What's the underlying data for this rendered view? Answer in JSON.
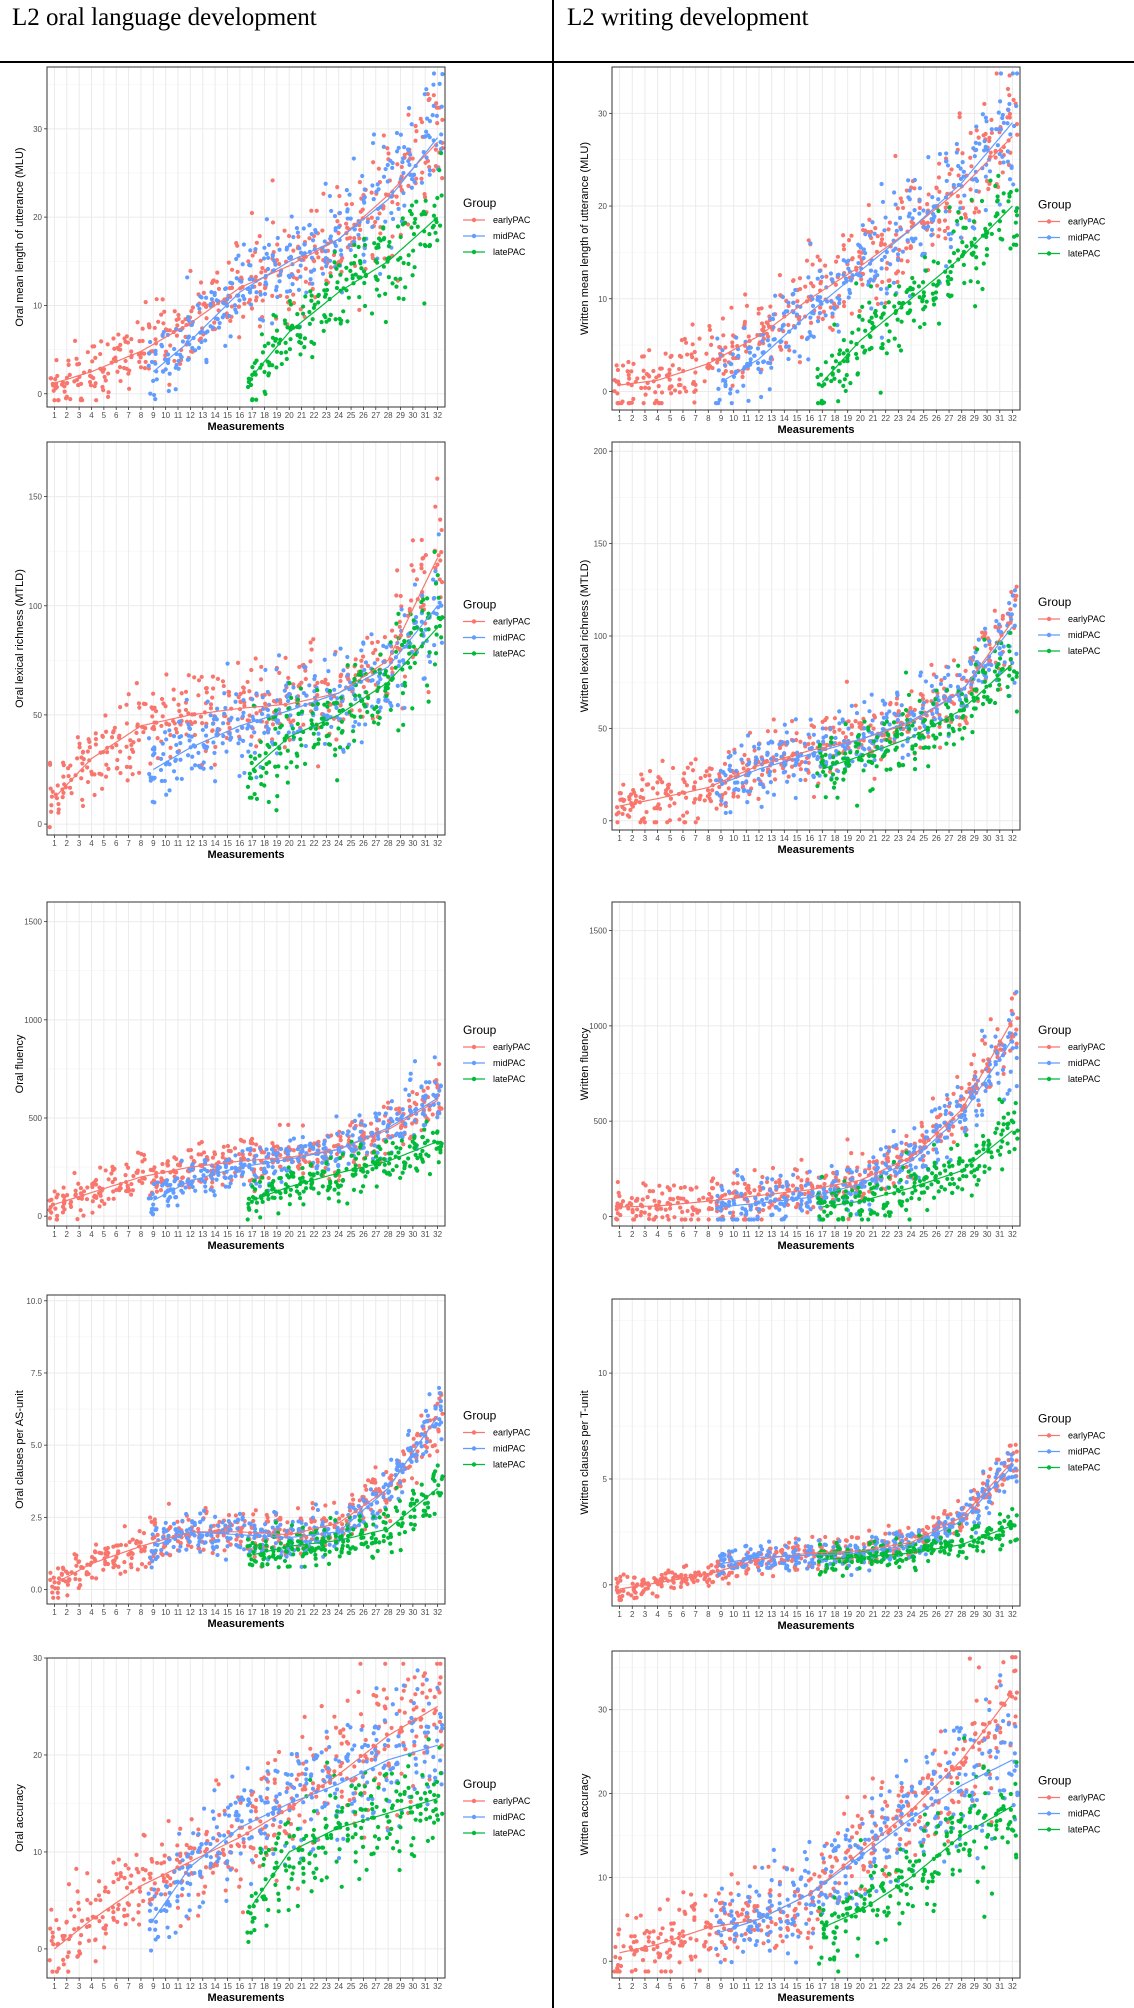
{
  "columns": {
    "left_title": "L2 oral language development",
    "right_title": "L2 writing development"
  },
  "chart_data": [
    {
      "type": "scatter",
      "ylabel": "Oral mean length of utterance (MLU)",
      "xlabel": "Measurements",
      "ylim": [
        -1.5,
        37
      ],
      "yticks": [
        0,
        10,
        20,
        30
      ],
      "ytick_labels": [
        "0",
        "10",
        "20",
        "30"
      ],
      "spread_sd": 3,
      "legend_title": "Group",
      "series": [
        {
          "name": "earlyPAC",
          "color": "#F8766D",
          "x": [
            1,
            4,
            8,
            12,
            16,
            20,
            24,
            28,
            32
          ],
          "trend": [
            1.2,
            2.5,
            4.8,
            8,
            12,
            14.5,
            17.5,
            22.5,
            28.5
          ]
        },
        {
          "name": "midPAC",
          "color": "#619CFF",
          "x": [
            9,
            12,
            16,
            20,
            24,
            28,
            32
          ],
          "trend": [
            2.5,
            6,
            11.5,
            15,
            17.5,
            22,
            29
          ]
        },
        {
          "name": "latePAC",
          "color": "#00BA38",
          "x": [
            17,
            20,
            24,
            28,
            32
          ],
          "trend": [
            2,
            7,
            11.5,
            15,
            20
          ]
        }
      ]
    },
    {
      "type": "scatter",
      "ylabel": "Oral lexical richness (MTLD)",
      "xlabel": "Measurements",
      "ylim": [
        -5,
        175
      ],
      "yticks": [
        0,
        50,
        100,
        150
      ],
      "ytick_labels": [
        "0",
        "50",
        "100",
        "150"
      ],
      "spread_sd": 12,
      "legend_title": "Group",
      "series": [
        {
          "name": "earlyPAC",
          "color": "#F8766D",
          "x": [
            1,
            4,
            8,
            12,
            16,
            20,
            24,
            28,
            32
          ],
          "trend": [
            12,
            30,
            45,
            50,
            53,
            55,
            60,
            75,
            122
          ]
        },
        {
          "name": "midPAC",
          "color": "#619CFF",
          "x": [
            9,
            12,
            16,
            20,
            24,
            28,
            32
          ],
          "trend": [
            25,
            35,
            45,
            52,
            60,
            72,
            100
          ]
        },
        {
          "name": "latePAC",
          "color": "#00BA38",
          "x": [
            17,
            20,
            24,
            28,
            32
          ],
          "trend": [
            25,
            40,
            50,
            65,
            90
          ]
        }
      ]
    },
    {
      "type": "scatter",
      "ylabel": "Oral fluency",
      "xlabel": "Measurements",
      "ylim": [
        -50,
        1600
      ],
      "yticks": [
        0,
        500,
        1000,
        1500
      ],
      "ytick_labels": [
        "0",
        "500",
        "1000",
        "1500"
      ],
      "spread_sd": 80,
      "legend_title": "Group",
      "series": [
        {
          "name": "earlyPAC",
          "color": "#F8766D",
          "x": [
            1,
            4,
            8,
            12,
            16,
            20,
            24,
            28,
            32
          ],
          "trend": [
            60,
            120,
            200,
            250,
            280,
            300,
            340,
            440,
            590
          ]
        },
        {
          "name": "midPAC",
          "color": "#619CFF",
          "x": [
            9,
            12,
            16,
            20,
            24,
            28,
            32
          ],
          "trend": [
            80,
            180,
            250,
            290,
            340,
            450,
            600
          ]
        },
        {
          "name": "latePAC",
          "color": "#00BA38",
          "x": [
            17,
            20,
            24,
            28,
            32
          ],
          "trend": [
            80,
            150,
            220,
            280,
            380
          ]
        }
      ]
    },
    {
      "type": "scatter",
      "ylabel": "Oral clauses per AS-unit",
      "xlabel": "Measurements",
      "ylim": [
        -0.5,
        10.2
      ],
      "yticks": [
        0,
        2.5,
        5,
        7.5,
        10
      ],
      "ytick_labels": [
        "0.0",
        "2.5",
        "5.0",
        "7.5",
        "10.0"
      ],
      "spread_sd": 0.5,
      "legend_title": "Group",
      "series": [
        {
          "name": "earlyPAC",
          "color": "#F8766D",
          "x": [
            1,
            4,
            8,
            12,
            16,
            20,
            24,
            28,
            32
          ],
          "trend": [
            0.2,
            0.9,
            1.5,
            2,
            2,
            1.9,
            2.3,
            3.5,
            6
          ]
        },
        {
          "name": "midPAC",
          "color": "#619CFF",
          "x": [
            9,
            12,
            16,
            20,
            24,
            28,
            32
          ],
          "trend": [
            1.5,
            2,
            1.9,
            1.8,
            2,
            3.5,
            6
          ]
        },
        {
          "name": "latePAC",
          "color": "#00BA38",
          "x": [
            17,
            20,
            24,
            28,
            32
          ],
          "trend": [
            1.2,
            1.5,
            1.7,
            2.1,
            3.5
          ]
        }
      ]
    },
    {
      "type": "scatter",
      "ylabel": "Oral accuracy",
      "xlabel": "Measurements",
      "ylim": [
        -3,
        30
      ],
      "yticks": [
        0,
        10,
        20,
        30
      ],
      "ytick_labels": [
        "0",
        "10",
        "20",
        "30"
      ],
      "spread_sd": 3,
      "legend_title": "Group",
      "series": [
        {
          "name": "earlyPAC",
          "color": "#F8766D",
          "x": [
            1,
            4,
            8,
            12,
            16,
            20,
            24,
            28,
            32
          ],
          "trend": [
            0,
            3,
            6.5,
            9,
            11.5,
            14.5,
            18,
            22,
            25
          ]
        },
        {
          "name": "midPAC",
          "color": "#619CFF",
          "x": [
            9,
            12,
            16,
            20,
            24,
            28,
            32
          ],
          "trend": [
            3,
            8.5,
            12.5,
            15,
            17,
            19.5,
            21
          ]
        },
        {
          "name": "latePAC",
          "color": "#00BA38",
          "x": [
            17,
            20,
            24,
            28,
            32
          ],
          "trend": [
            4.5,
            10,
            12.5,
            14,
            15.5
          ]
        }
      ]
    },
    {
      "type": "scatter",
      "ylabel": "Written mean length of utterance (MLU)",
      "xlabel": "Measurements",
      "ylim": [
        -2,
        35
      ],
      "yticks": [
        0,
        10,
        20,
        30
      ],
      "ytick_labels": [
        "0",
        "10",
        "20",
        "30"
      ],
      "spread_sd": 3,
      "legend_title": "Group",
      "series": [
        {
          "name": "earlyPAC",
          "color": "#F8766D",
          "x": [
            1,
            4,
            8,
            12,
            16,
            20,
            24,
            28,
            32
          ],
          "trend": [
            0.7,
            1.2,
            3,
            6,
            10,
            13.5,
            17.5,
            22,
            27.5
          ]
        },
        {
          "name": "midPAC",
          "color": "#619CFF",
          "x": [
            9,
            12,
            16,
            20,
            24,
            28,
            32
          ],
          "trend": [
            1,
            3.5,
            8.5,
            13,
            17.5,
            22.5,
            29
          ]
        },
        {
          "name": "latePAC",
          "color": "#00BA38",
          "x": [
            17,
            20,
            24,
            28,
            32
          ],
          "trend": [
            1,
            5.5,
            10,
            14.5,
            20
          ]
        }
      ]
    },
    {
      "type": "scatter",
      "ylabel": "Written lexical richness (MTLD)",
      "xlabel": "Measurements",
      "ylim": [
        -5,
        205
      ],
      "yticks": [
        0,
        50,
        100,
        150,
        200
      ],
      "ytick_labels": [
        "0",
        "50",
        "100",
        "150",
        "200"
      ],
      "spread_sd": 12,
      "legend_title": "Group",
      "series": [
        {
          "name": "earlyPAC",
          "color": "#F8766D",
          "x": [
            1,
            4,
            8,
            12,
            16,
            20,
            24,
            28,
            32
          ],
          "trend": [
            8,
            12,
            18,
            30,
            38,
            44,
            53,
            70,
            108
          ]
        },
        {
          "name": "midPAC",
          "color": "#619CFF",
          "x": [
            9,
            12,
            16,
            20,
            24,
            28,
            32
          ],
          "trend": [
            20,
            28,
            36,
            44,
            54,
            70,
            105
          ]
        },
        {
          "name": "latePAC",
          "color": "#00BA38",
          "x": [
            17,
            20,
            24,
            28,
            32
          ],
          "trend": [
            28,
            35,
            45,
            60,
            85
          ]
        }
      ]
    },
    {
      "type": "scatter",
      "ylabel": "Written fluency",
      "xlabel": "Measurements",
      "ylim": [
        -50,
        1650
      ],
      "yticks": [
        0,
        500,
        1000,
        1500
      ],
      "ytick_labels": [
        "0",
        "500",
        "1000",
        "1500"
      ],
      "spread_sd": 100,
      "legend_title": "Group",
      "series": [
        {
          "name": "earlyPAC",
          "color": "#F8766D",
          "x": [
            1,
            4,
            8,
            12,
            16,
            20,
            24,
            28,
            32
          ],
          "trend": [
            50,
            55,
            80,
            110,
            140,
            190,
            310,
            560,
            1030
          ]
        },
        {
          "name": "midPAC",
          "color": "#619CFF",
          "x": [
            9,
            12,
            16,
            20,
            24,
            28,
            32
          ],
          "trend": [
            50,
            70,
            100,
            170,
            290,
            530,
            930
          ]
        },
        {
          "name": "latePAC",
          "color": "#00BA38",
          "x": [
            17,
            20,
            24,
            28,
            32
          ],
          "trend": [
            50,
            80,
            150,
            240,
            450
          ]
        }
      ]
    },
    {
      "type": "scatter",
      "ylabel": "Written clauses per T-unit",
      "xlabel": "Measurements",
      "ylim": [
        -1,
        13.5
      ],
      "yticks": [
        0,
        5,
        10
      ],
      "ytick_labels": [
        "0",
        "5",
        "10"
      ],
      "spread_sd": 0.5,
      "legend_title": "Group",
      "series": [
        {
          "name": "earlyPAC",
          "color": "#F8766D",
          "x": [
            1,
            4,
            8,
            12,
            16,
            20,
            24,
            28,
            32
          ],
          "trend": [
            -0.2,
            0.1,
            0.5,
            1.2,
            1.5,
            1.6,
            2,
            3.2,
            5.8
          ]
        },
        {
          "name": "midPAC",
          "color": "#619CFF",
          "x": [
            9,
            12,
            16,
            20,
            24,
            28,
            32
          ],
          "trend": [
            1,
            1.3,
            1.4,
            1.5,
            1.9,
            3,
            5.6
          ]
        },
        {
          "name": "latePAC",
          "color": "#00BA38",
          "x": [
            17,
            20,
            24,
            28,
            32
          ],
          "trend": [
            1.2,
            1.3,
            1.5,
            1.9,
            2.8
          ]
        }
      ]
    },
    {
      "type": "scatter",
      "ylabel": "Written accuracy",
      "xlabel": "Measurements",
      "ylim": [
        -2,
        37
      ],
      "yticks": [
        0,
        10,
        20,
        30
      ],
      "ytick_labels": [
        "0",
        "10",
        "20",
        "30"
      ],
      "spread_sd": 3.5,
      "legend_title": "Group",
      "series": [
        {
          "name": "earlyPAC",
          "color": "#F8766D",
          "x": [
            1,
            4,
            8,
            12,
            16,
            20,
            24,
            28,
            32
          ],
          "trend": [
            1,
            2,
            4,
            5,
            8,
            13,
            18,
            24,
            32
          ]
        },
        {
          "name": "midPAC",
          "color": "#619CFF",
          "x": [
            9,
            12,
            16,
            20,
            24,
            28,
            32
          ],
          "trend": [
            3.5,
            5,
            8,
            12.5,
            17,
            21,
            24
          ]
        },
        {
          "name": "latePAC",
          "color": "#00BA38",
          "x": [
            17,
            20,
            24,
            28,
            32
          ],
          "trend": [
            4,
            6,
            10,
            15,
            18.5
          ]
        }
      ]
    }
  ]
}
